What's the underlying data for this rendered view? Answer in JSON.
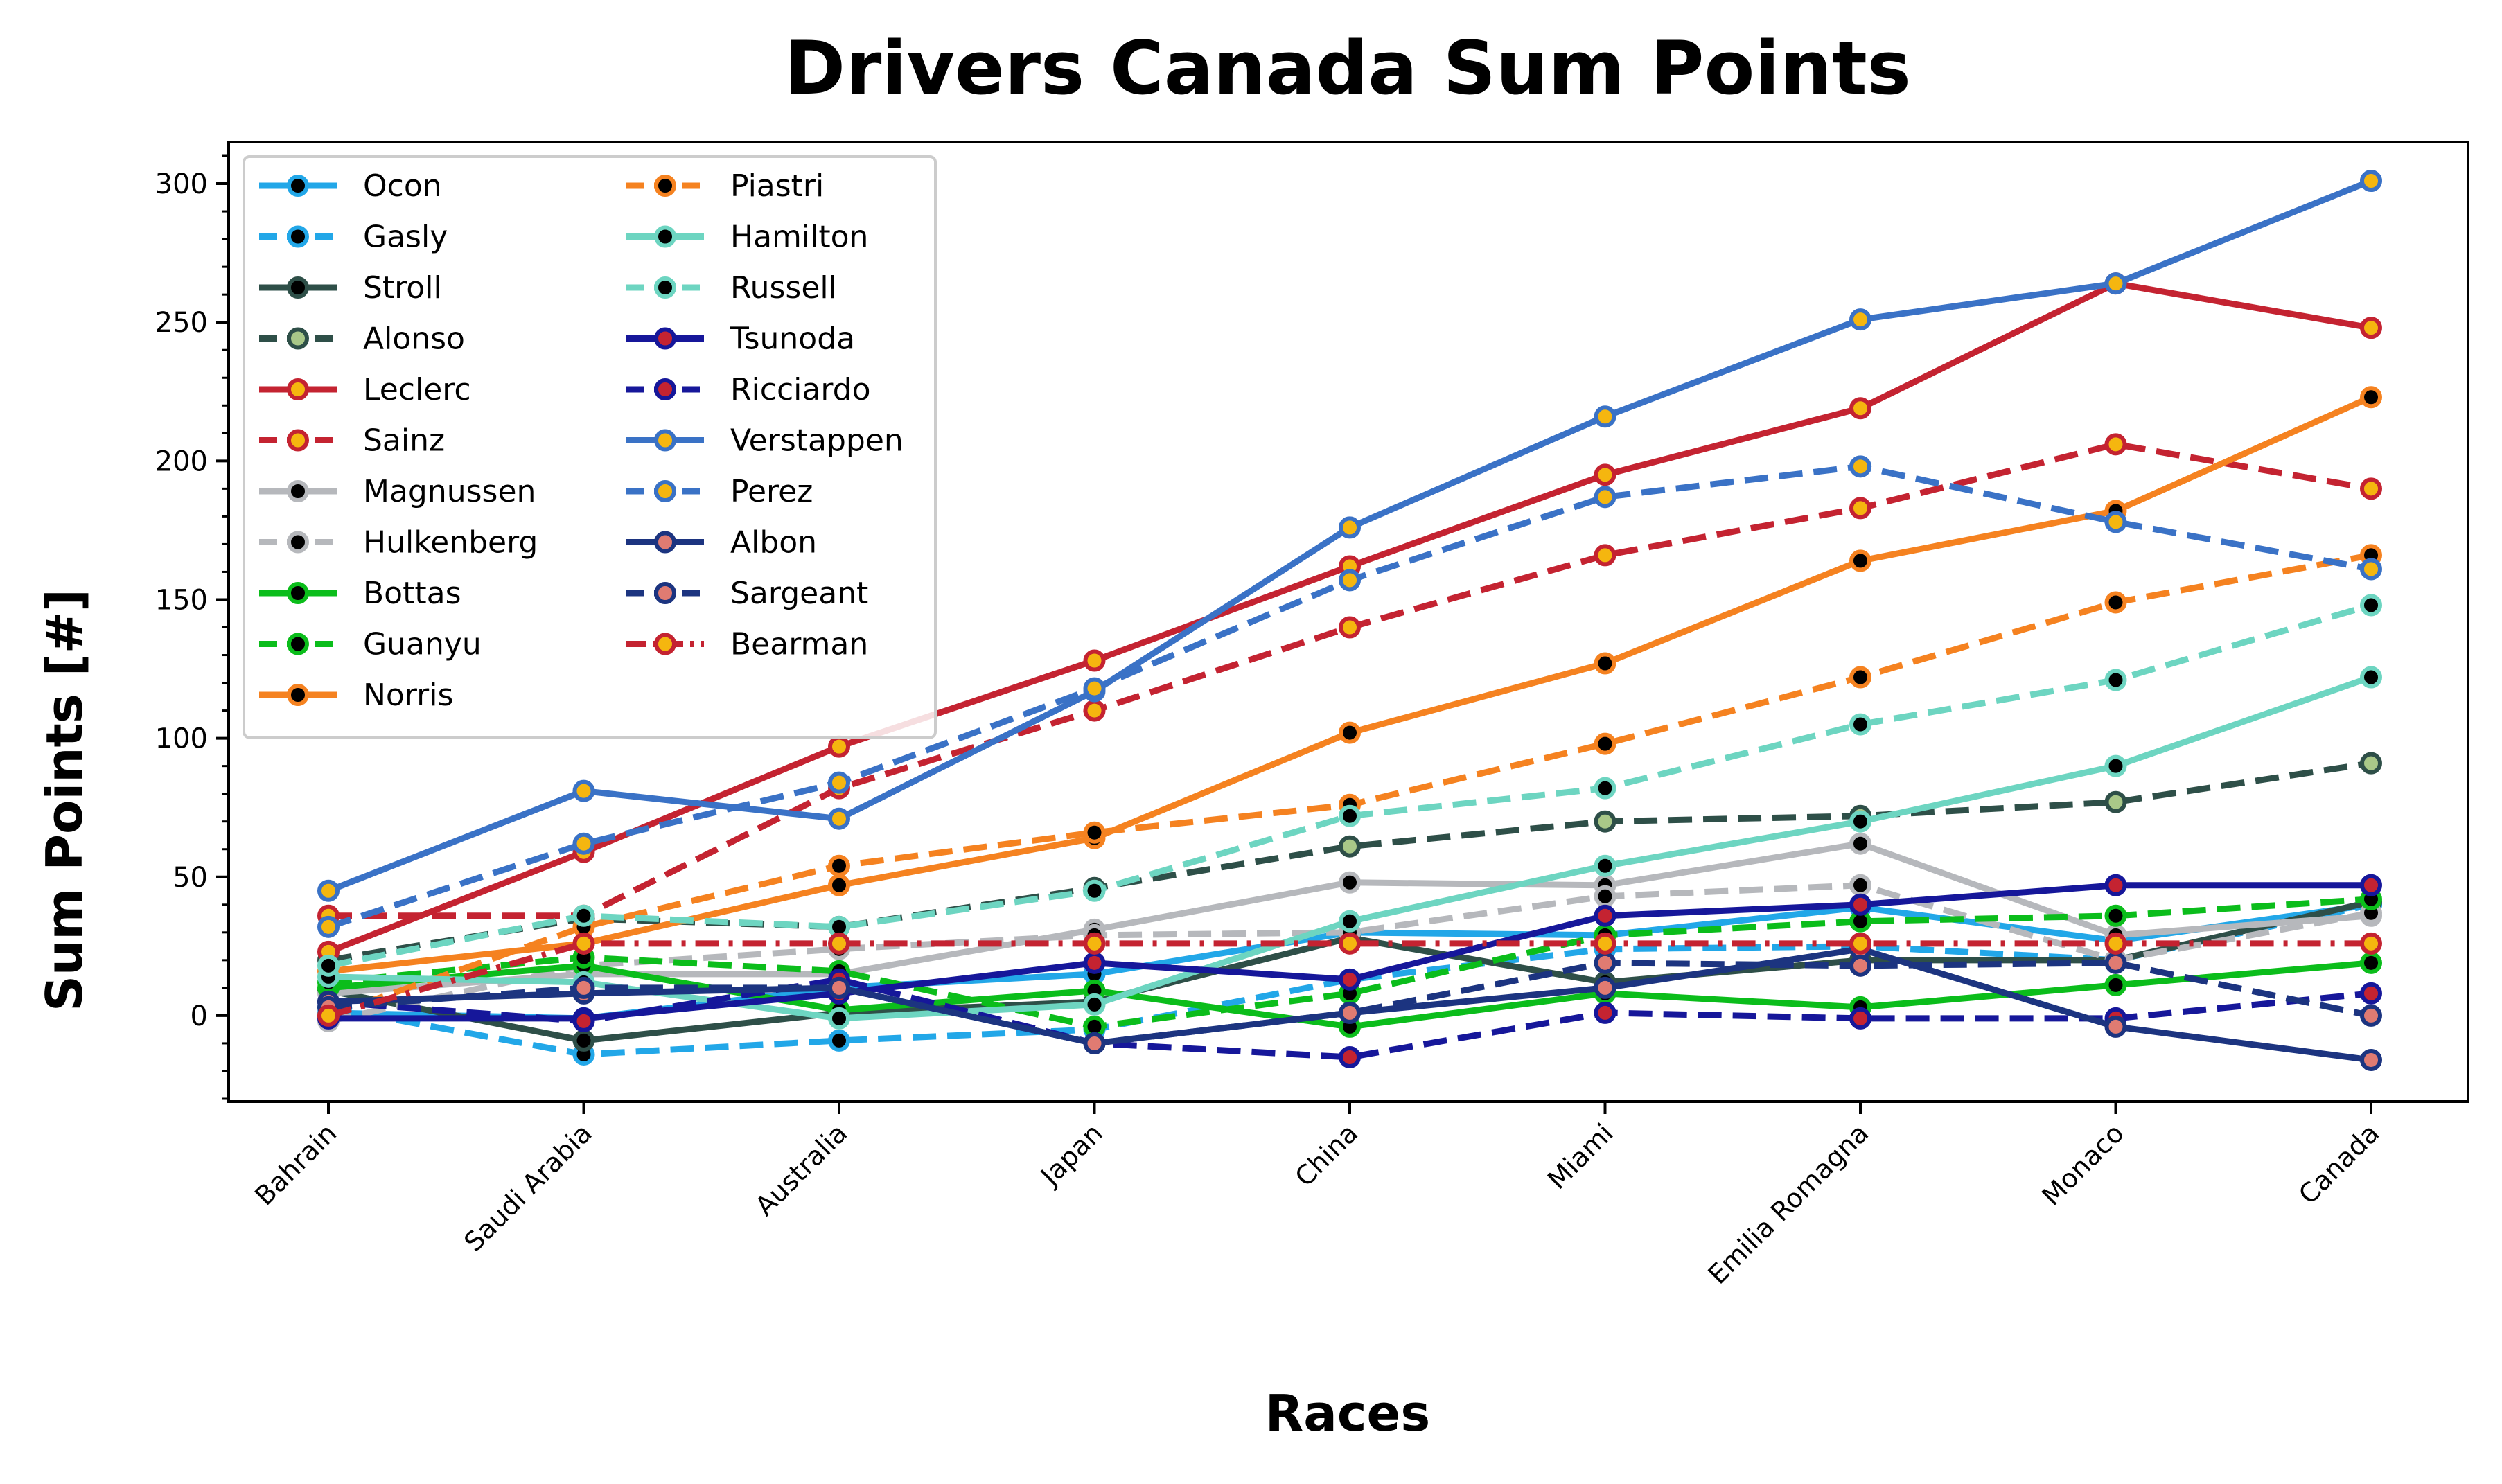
{
  "chart_data": {
    "type": "line",
    "title": "Drivers Canada Sum Points",
    "xlabel": "Races",
    "ylabel": "Sum Points [#]",
    "ylim": [
      -31,
      315
    ],
    "yticks": [
      0,
      50,
      100,
      150,
      200,
      250,
      300
    ],
    "grid": false,
    "legend_position": "top-left",
    "categories": [
      "Bahrain",
      "Saudi Arabia",
      "Australia",
      "Japan",
      "China",
      "Miami",
      "Emilia Romagna",
      "Monaco",
      "Canada"
    ],
    "series": [
      {
        "name": "Ocon",
        "color": "#22a7e8",
        "dash": "solid",
        "marker_face": "#000000",
        "values": [
          1,
          -1,
          10,
          15,
          30,
          29,
          39,
          27,
          40
        ]
      },
      {
        "name": "Gasly",
        "color": "#22a7e8",
        "dash": "dashed",
        "marker_face": "#000000",
        "values": [
          3,
          -14,
          -9,
          -5,
          13,
          24,
          25,
          20,
          40
        ]
      },
      {
        "name": "Stroll",
        "color": "#2e4f48",
        "dash": "solid",
        "marker_face": "#000000",
        "values": [
          9,
          -9,
          1,
          5,
          28,
          12,
          20,
          20,
          41
        ]
      },
      {
        "name": "Alonso",
        "color": "#2e4f48",
        "dash": "dashed",
        "marker_face": "#a9c888",
        "values": [
          20,
          35,
          32,
          46,
          61,
          70,
          72,
          77,
          91
        ]
      },
      {
        "name": "Leclerc",
        "color": "#c42331",
        "dash": "solid",
        "marker_face": "#f5b60f",
        "values": [
          23,
          59,
          97,
          128,
          162,
          195,
          219,
          264,
          248
        ]
      },
      {
        "name": "Sainz",
        "color": "#c42331",
        "dash": "dashed",
        "marker_face": "#f5b60f",
        "values": [
          36,
          36,
          82,
          110,
          140,
          166,
          183,
          206,
          190
        ]
      },
      {
        "name": "Magnussen",
        "color": "#b6b8bc",
        "dash": "solid",
        "marker_face": "#000000",
        "values": [
          8,
          15,
          15,
          31,
          48,
          47,
          62,
          29,
          36
        ]
      },
      {
        "name": "Hulkenberg",
        "color": "#b6b8bc",
        "dash": "dashed",
        "marker_face": "#000000",
        "values": [
          -2,
          18,
          24,
          29,
          30,
          43,
          47,
          20,
          37
        ]
      },
      {
        "name": "Bottas",
        "color": "#0bbd1b",
        "dash": "solid",
        "marker_face": "#000000",
        "values": [
          10,
          18,
          2,
          9,
          -4,
          8,
          3,
          11,
          19
        ]
      },
      {
        "name": "Guanyu",
        "color": "#0bbd1b",
        "dash": "dashed",
        "marker_face": "#000000",
        "values": [
          12,
          21,
          16,
          -4,
          8,
          29,
          34,
          36,
          42
        ]
      },
      {
        "name": "Norris",
        "color": "#f58220",
        "dash": "solid",
        "marker_face": "#000000",
        "values": [
          16,
          26,
          47,
          64,
          102,
          127,
          164,
          182,
          223
        ]
      },
      {
        "name": "Piastri",
        "color": "#f58220",
        "dash": "dashed",
        "marker_face": "#000000",
        "values": [
          0,
          32,
          54,
          66,
          76,
          98,
          122,
          149,
          166
        ]
      },
      {
        "name": "Hamilton",
        "color": "#6dd5c1",
        "dash": "solid",
        "marker_face": "#000000",
        "values": [
          14,
          12,
          -1,
          4,
          34,
          54,
          70,
          90,
          122
        ]
      },
      {
        "name": "Russell",
        "color": "#6dd5c1",
        "dash": "dashed",
        "marker_face": "#000000",
        "values": [
          18,
          36,
          32,
          45,
          72,
          82,
          105,
          121,
          148
        ]
      },
      {
        "name": "Tsunoda",
        "color": "#16179a",
        "dash": "solid",
        "marker_face": "#c42331",
        "values": [
          -1,
          -1,
          8,
          19,
          13,
          36,
          40,
          47,
          47
        ]
      },
      {
        "name": "Ricciardo",
        "color": "#16179a",
        "dash": "dashed",
        "marker_face": "#c42331",
        "values": [
          5,
          -2,
          13,
          -10,
          -15,
          1,
          -1,
          -1,
          8
        ]
      },
      {
        "name": "Verstappen",
        "color": "#3a72c6",
        "dash": "solid",
        "marker_face": "#f5b60f",
        "values": [
          45,
          81,
          71,
          117,
          176,
          216,
          251,
          264,
          301
        ]
      },
      {
        "name": "Perez",
        "color": "#3a72c6",
        "dash": "dashed",
        "marker_face": "#f5b60f",
        "values": [
          32,
          62,
          84,
          118,
          157,
          187,
          198,
          178,
          161
        ]
      },
      {
        "name": "Albon",
        "color": "#1c3480",
        "dash": "solid",
        "marker_face": "#e07b72",
        "values": [
          5,
          8,
          10,
          -10,
          1,
          10,
          24,
          -4,
          -16
        ]
      },
      {
        "name": "Sargeant",
        "color": "#1c3480",
        "dash": "dashed",
        "marker_face": "#e07b72",
        "values": [
          3,
          10,
          10,
          -10,
          1,
          19,
          18,
          19,
          0
        ]
      },
      {
        "name": "Bearman",
        "color": "#c42331",
        "dash": "dashdot",
        "marker_face": "#f5b60f",
        "values": [
          0,
          26,
          26,
          26,
          26,
          26,
          26,
          26,
          26
        ]
      }
    ]
  }
}
